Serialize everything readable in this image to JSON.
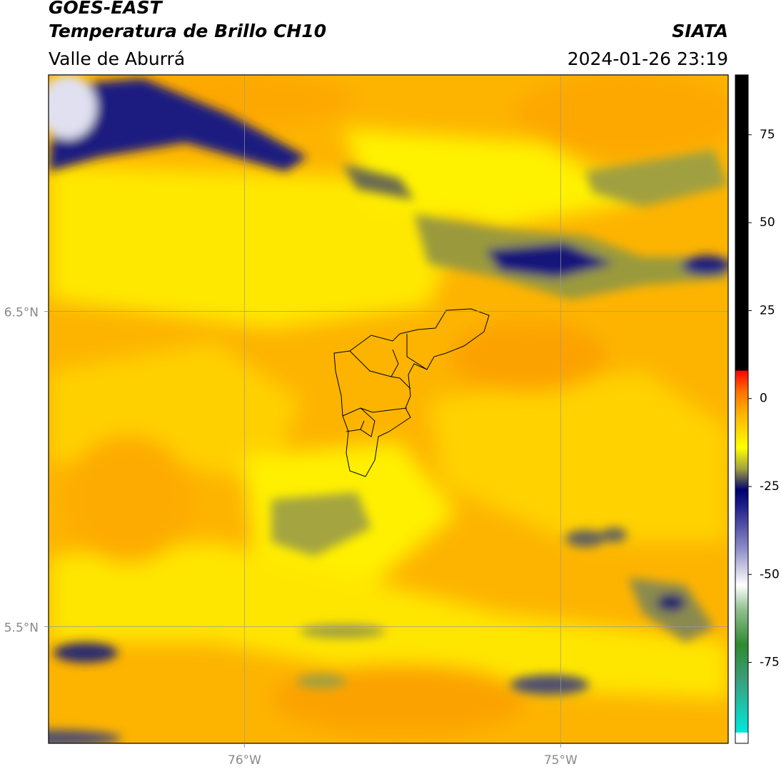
{
  "header": {
    "title": "GOES-EAST",
    "subtitle": "Temperatura de Brillo CH10",
    "region": "Valle de Aburrá",
    "source": "SIATA",
    "timestamp": "2024-01-26 23:19"
  },
  "map": {
    "lon_range": [
      -76.62,
      -74.47
    ],
    "lat_range": [
      5.13,
      7.25
    ],
    "lon_ticks": [
      {
        "value": -76,
        "label": "76°W"
      },
      {
        "value": -75,
        "label": "75°W"
      }
    ],
    "lat_ticks": [
      {
        "value": 6.5,
        "label": "6.5°N"
      },
      {
        "value": 5.5,
        "label": "5.5°N"
      }
    ],
    "grid": true
  },
  "colorbar": {
    "range": [
      -98,
      92
    ],
    "ticks": [
      75,
      50,
      25,
      0,
      -25,
      -50,
      -75
    ],
    "stops": [
      {
        "value": -98,
        "color": "#ffffff"
      },
      {
        "value": -95,
        "color": "#ffffff"
      },
      {
        "value": -95,
        "color": "#00e8dc"
      },
      {
        "value": -80,
        "color": "#3a9f7a"
      },
      {
        "value": -70,
        "color": "#2e8a30"
      },
      {
        "value": -60,
        "color": "#90c090"
      },
      {
        "value": -53,
        "color": "#ffffff"
      },
      {
        "value": -43,
        "color": "#9090c8"
      },
      {
        "value": -30,
        "color": "#1a1a88"
      },
      {
        "value": -26,
        "color": "#000070"
      },
      {
        "value": -20,
        "color": "#a0a040"
      },
      {
        "value": -14,
        "color": "#ffff00"
      },
      {
        "value": -4,
        "color": "#ffb000"
      },
      {
        "value": 2,
        "color": "#ff7000"
      },
      {
        "value": 8,
        "color": "#ff0000"
      },
      {
        "value": 8,
        "color": "#000000"
      },
      {
        "value": 92,
        "color": "#000000"
      }
    ]
  }
}
